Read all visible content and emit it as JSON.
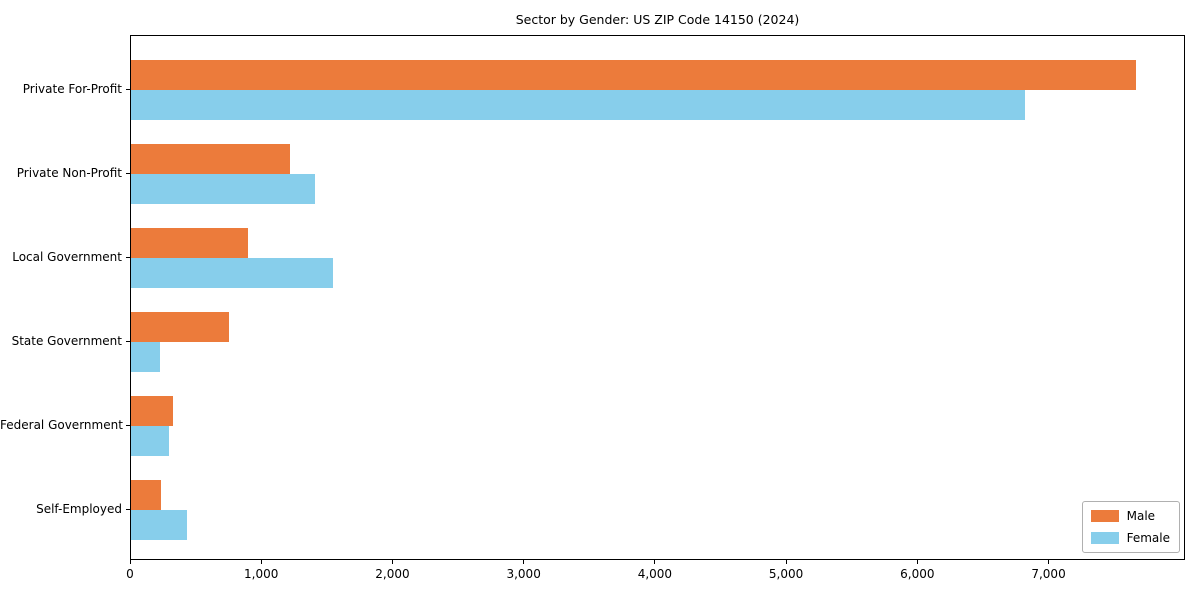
{
  "figure": {
    "background": "#ffffff",
    "text_color": "#000000",
    "spine_color": "#000000"
  },
  "chart_data": {
    "type": "bar",
    "orientation": "horizontal",
    "title": "Sector by Gender: US ZIP Code 14150 (2024)",
    "categories": [
      "Private For-Profit",
      "Private Non-Profit",
      "Local Government",
      "State Government",
      "Federal Government",
      "Self-Employed"
    ],
    "series": [
      {
        "name": "Male",
        "color": "#EC7B3B",
        "values": [
          7660,
          1210,
          890,
          750,
          320,
          230
        ]
      },
      {
        "name": "Female",
        "color": "#87CEEB",
        "values": [
          6810,
          1400,
          1540,
          220,
          290,
          430
        ]
      }
    ],
    "xlabel": "",
    "ylabel": "",
    "xlim": [
      0,
      8040
    ],
    "xticks": [
      0,
      1000,
      2000,
      3000,
      4000,
      5000,
      6000,
      7000
    ],
    "xtick_labels": [
      "0",
      "1,000",
      "2,000",
      "3,000",
      "4,000",
      "5,000",
      "6,000",
      "7,000"
    ],
    "grid": false,
    "legend": {
      "position": "lower right",
      "entries": [
        "Male",
        "Female"
      ]
    }
  }
}
